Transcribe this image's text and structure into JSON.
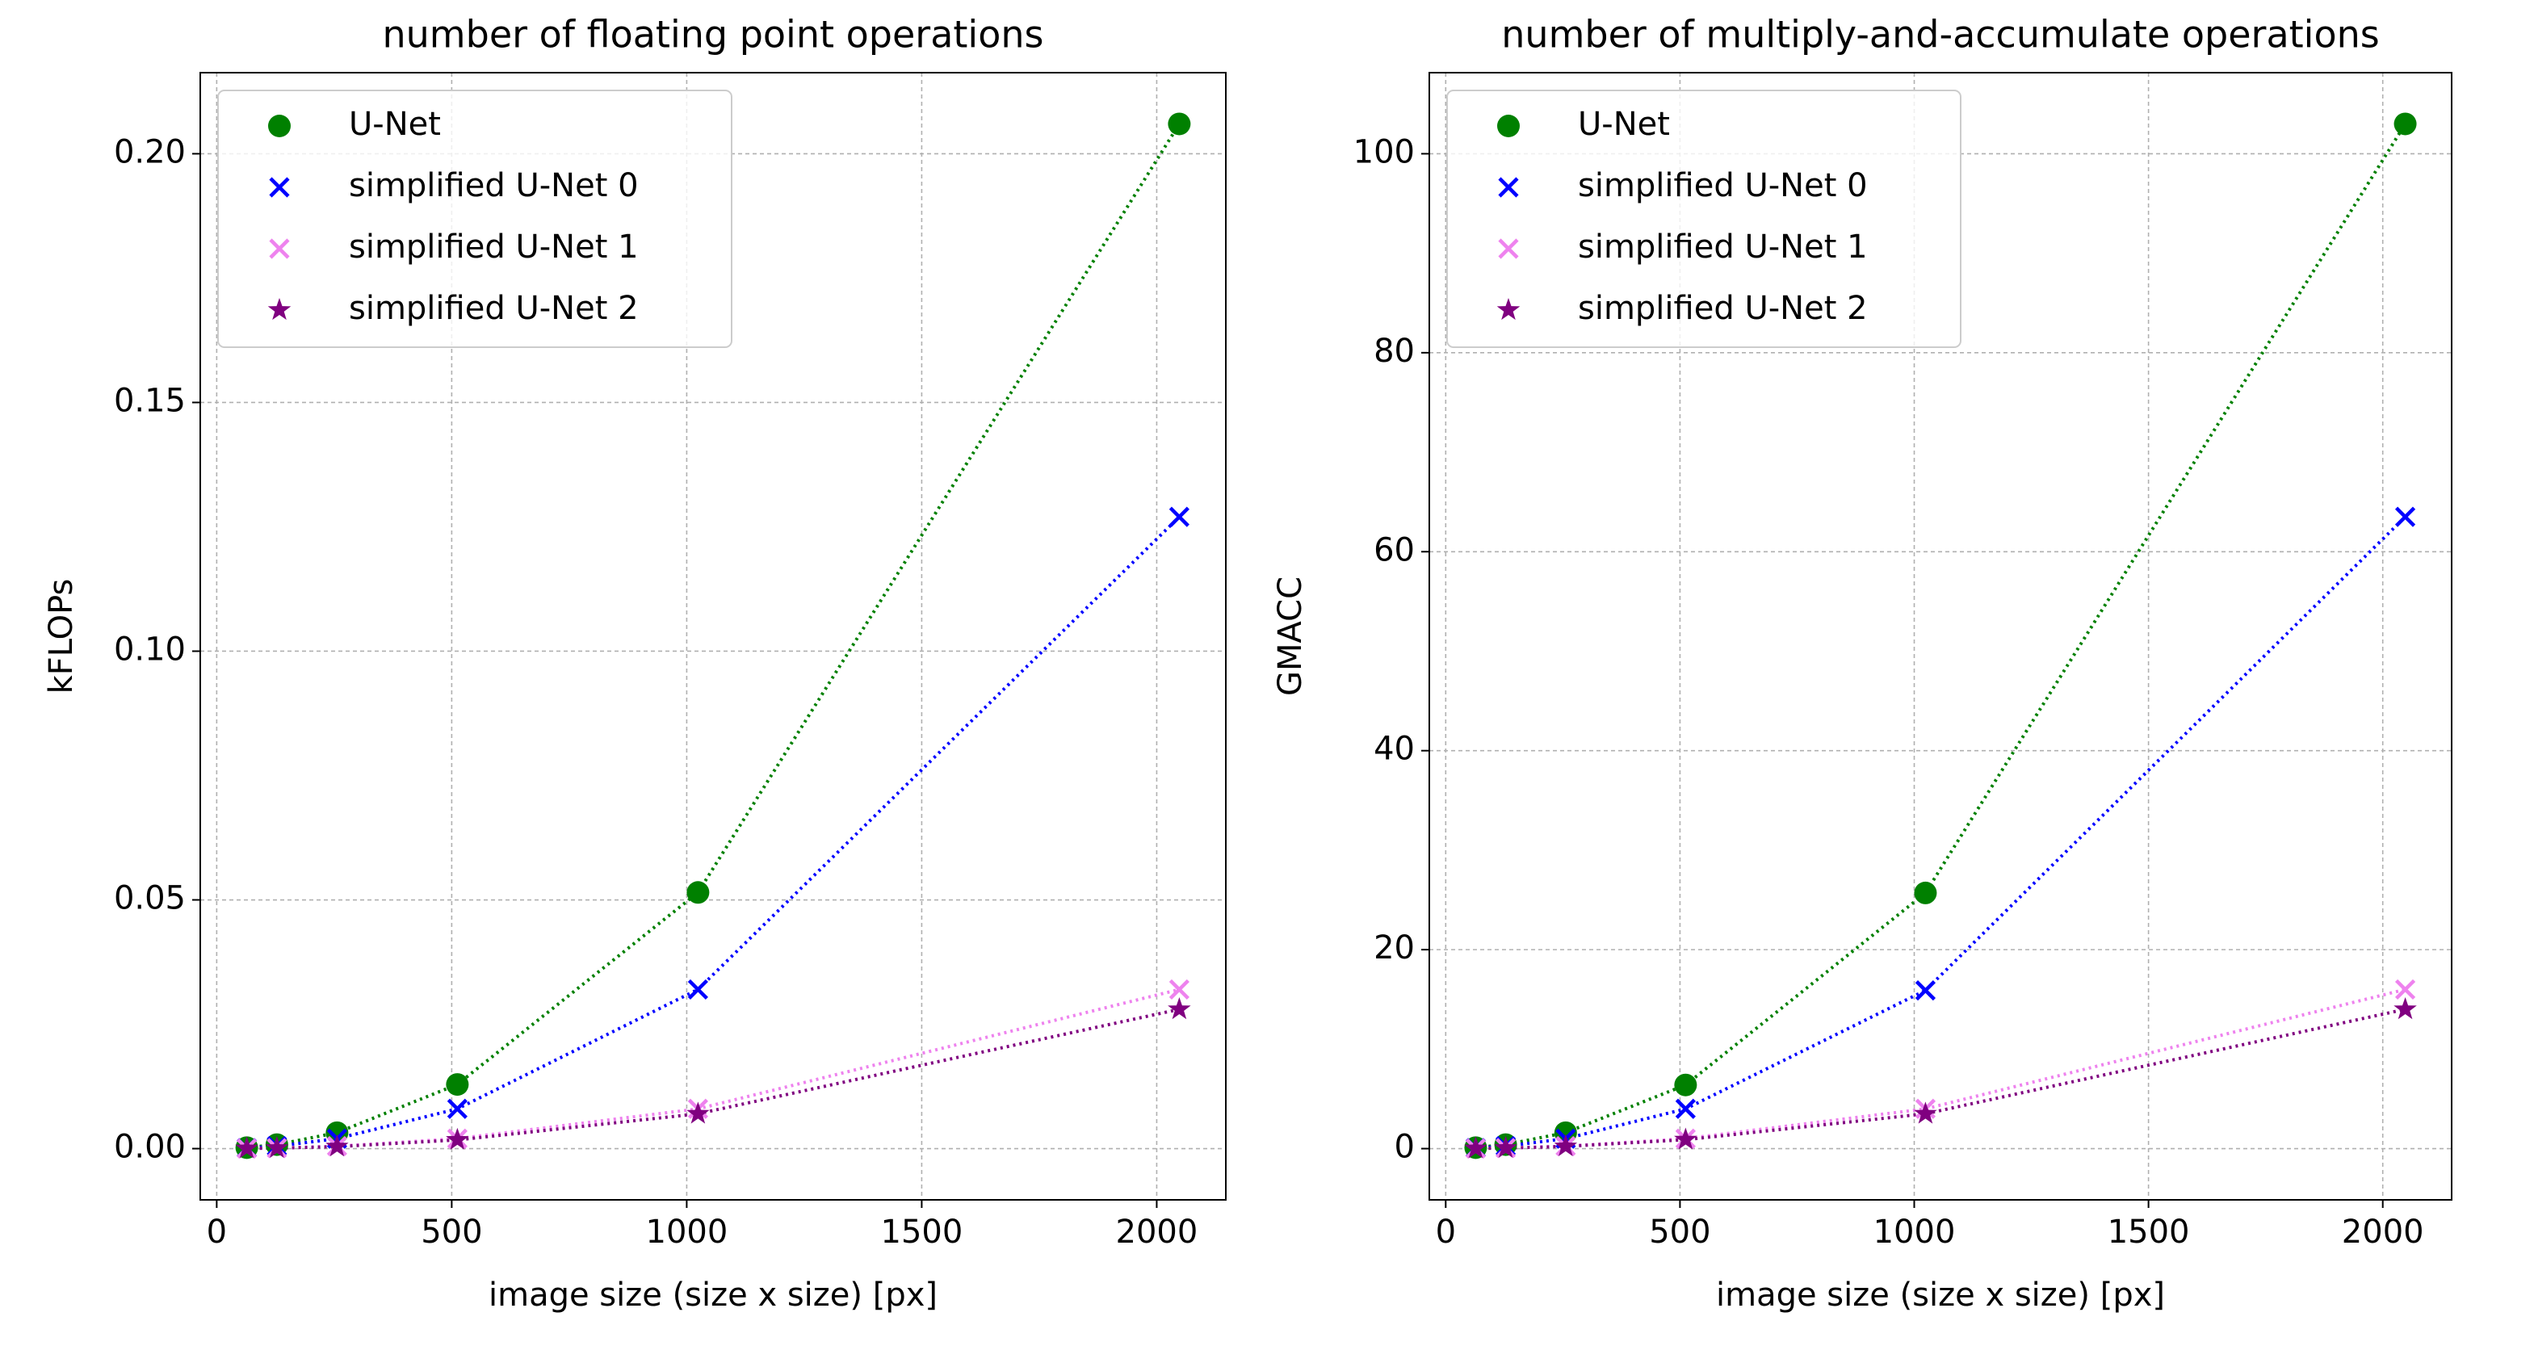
{
  "chart_data": [
    {
      "type": "scatter",
      "title": "number of floating point operations",
      "x_label": "image size (size x size) [px]",
      "y_label": "kFLOPs",
      "x": [
        64,
        128,
        256,
        512,
        1024,
        2048
      ],
      "series": [
        {
          "name": "U-Net",
          "color": "#008000",
          "marker": "circle",
          "values": [
            0.0002,
            0.0008,
            0.0032,
            0.0129,
            0.0515,
            0.206
          ]
        },
        {
          "name": "simplified U-Net 0",
          "color": "#0000ff",
          "marker": "x",
          "values": [
            0.0001,
            0.0005,
            0.002,
            0.008,
            0.032,
            0.127
          ]
        },
        {
          "name": "simplified U-Net 1",
          "color": "#ee82ee",
          "marker": "x",
          "values": [
            3e-05,
            0.0001,
            0.0005,
            0.002,
            0.008,
            0.032
          ]
        },
        {
          "name": "simplified U-Net 2",
          "color": "#800080",
          "marker": "star",
          "values": [
            3e-05,
            0.0001,
            0.0004,
            0.00175,
            0.007,
            0.028
          ]
        }
      ],
      "xlim": [
        -35,
        2147
      ],
      "ylim": [
        -0.0103,
        0.2163
      ],
      "xticks": [
        0,
        500,
        1000,
        1500,
        2000
      ],
      "yticks": [
        {
          "value": 0,
          "label": "0.00"
        },
        {
          "value": 0.05,
          "label": "0.05"
        },
        {
          "value": 0.1,
          "label": "0.10"
        },
        {
          "value": 0.15,
          "label": "0.15"
        },
        {
          "value": 0.2,
          "label": "0.20"
        }
      ],
      "grid": true,
      "legend": "upper left",
      "line_style": "dotted"
    },
    {
      "type": "scatter",
      "title": "number of multiply-and-accumulate operations",
      "x_label": "image size (size x size) [px]",
      "y_label": "GMACC",
      "x": [
        64,
        128,
        256,
        512,
        1024,
        2048
      ],
      "series": [
        {
          "name": "U-Net",
          "color": "#008000",
          "marker": "circle",
          "values": [
            0.1,
            0.4,
            1.6,
            6.4,
            25.7,
            103
          ]
        },
        {
          "name": "simplified U-Net 0",
          "color": "#0000ff",
          "marker": "x",
          "values": [
            0.06,
            0.25,
            1.0,
            4.0,
            15.9,
            63.5
          ]
        },
        {
          "name": "simplified U-Net 1",
          "color": "#ee82ee",
          "marker": "x",
          "values": [
            0.016,
            0.06,
            0.25,
            1.0,
            4.0,
            16
          ]
        },
        {
          "name": "simplified U-Net 2",
          "color": "#800080",
          "marker": "star",
          "values": [
            0.014,
            0.055,
            0.22,
            0.9,
            3.5,
            14
          ]
        }
      ],
      "xlim": [
        -35,
        2147
      ],
      "ylim": [
        -5.15,
        108.15
      ],
      "xticks": [
        0,
        500,
        1000,
        1500,
        2000
      ],
      "yticks": [
        0,
        20,
        40,
        60,
        80,
        100
      ],
      "grid": true,
      "legend": "upper left",
      "line_style": "dotted"
    }
  ]
}
